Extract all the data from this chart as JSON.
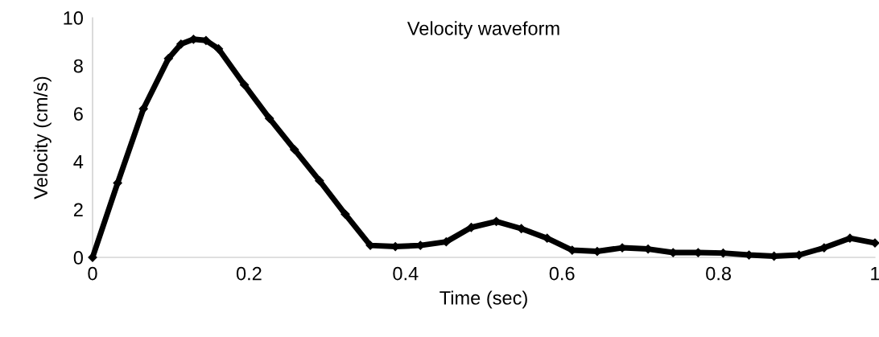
{
  "chart_data": {
    "type": "line",
    "title": "Velocity waveform",
    "xlabel": "Time (sec)",
    "ylabel": "Velocity (cm/s)",
    "series": [
      {
        "color": "#000000",
        "x": [
          0,
          0.032,
          0.065,
          0.097,
          0.113,
          0.129,
          0.145,
          0.161,
          0.194,
          0.226,
          0.258,
          0.29,
          0.323,
          0.355,
          0.387,
          0.419,
          0.452,
          0.484,
          0.516,
          0.548,
          0.581,
          0.613,
          0.645,
          0.677,
          0.71,
          0.742,
          0.774,
          0.806,
          0.839,
          0.871,
          0.903,
          0.935,
          0.968,
          1.0
        ],
        "values": [
          0,
          3.1,
          6.2,
          8.3,
          8.9,
          9.1,
          9.05,
          8.7,
          7.2,
          5.8,
          4.5,
          3.2,
          1.8,
          0.5,
          0.45,
          0.5,
          0.65,
          1.25,
          1.5,
          1.2,
          0.8,
          0.3,
          0.25,
          0.4,
          0.35,
          0.2,
          0.2,
          0.18,
          0.1,
          0.05,
          0.1,
          0.4,
          0.8,
          0.6
        ]
      }
    ],
    "xlim": [
      0,
      1
    ],
    "xticks": [
      0,
      0.2,
      0.4,
      0.6,
      0.8,
      1
    ],
    "ylim": [
      0,
      10
    ],
    "yticks": [
      0,
      2,
      4,
      6,
      8,
      10
    ],
    "grid": false,
    "legend": false,
    "marker": "diamond",
    "line_style": "solid"
  }
}
